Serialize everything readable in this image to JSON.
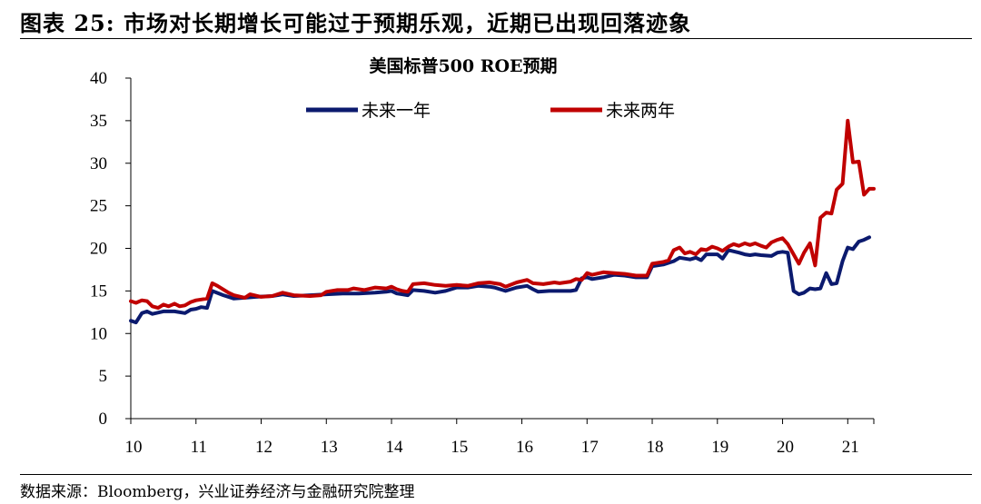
{
  "figure": {
    "title": "图表 25:  市场对长期增长可能过于预期乐观，近期已出现回落迹象",
    "source": "数据来源：Bloomberg，兴业证券经济与金融研究院整理"
  },
  "chart_data": {
    "type": "line",
    "title": "美国标普500 ROE预期",
    "xlabel": "",
    "ylabel": "",
    "xlim": [
      10,
      21.4
    ],
    "ylim": [
      0,
      40
    ],
    "yticks": [
      0,
      5,
      10,
      15,
      20,
      25,
      30,
      35,
      40
    ],
    "xticks": [
      10,
      11,
      12,
      13,
      14,
      15,
      16,
      17,
      18,
      19,
      20,
      21
    ],
    "xtick_labels": [
      "10",
      "11",
      "12",
      "13",
      "14",
      "15",
      "16",
      "17",
      "18",
      "19",
      "20",
      "21"
    ],
    "grid": false,
    "legend_position": "top",
    "series": [
      {
        "name": "未来一年",
        "color": "#0b1a6e",
        "points": [
          [
            10.0,
            11.5
          ],
          [
            10.08,
            11.3
          ],
          [
            10.17,
            12.4
          ],
          [
            10.25,
            12.6
          ],
          [
            10.33,
            12.3
          ],
          [
            10.5,
            12.6
          ],
          [
            10.67,
            12.6
          ],
          [
            10.83,
            12.4
          ],
          [
            10.92,
            12.8
          ],
          [
            11.0,
            12.9
          ],
          [
            11.08,
            13.1
          ],
          [
            11.17,
            13.0
          ],
          [
            11.25,
            15.0
          ],
          [
            11.42,
            14.5
          ],
          [
            11.58,
            14.1
          ],
          [
            11.75,
            14.2
          ],
          [
            11.92,
            14.3
          ],
          [
            12.17,
            14.4
          ],
          [
            12.33,
            14.6
          ],
          [
            12.5,
            14.4
          ],
          [
            12.75,
            14.5
          ],
          [
            13.0,
            14.6
          ],
          [
            13.25,
            14.7
          ],
          [
            13.5,
            14.7
          ],
          [
            13.75,
            14.8
          ],
          [
            13.92,
            14.9
          ],
          [
            14.0,
            15.0
          ],
          [
            14.08,
            14.7
          ],
          [
            14.17,
            14.6
          ],
          [
            14.25,
            14.5
          ],
          [
            14.33,
            15.1
          ],
          [
            14.5,
            15.0
          ],
          [
            14.67,
            14.8
          ],
          [
            14.83,
            15.0
          ],
          [
            15.0,
            15.4
          ],
          [
            15.17,
            15.4
          ],
          [
            15.33,
            15.6
          ],
          [
            15.5,
            15.5
          ],
          [
            15.58,
            15.4
          ],
          [
            15.75,
            15.0
          ],
          [
            15.92,
            15.4
          ],
          [
            16.08,
            15.6
          ],
          [
            16.17,
            15.2
          ],
          [
            16.25,
            14.9
          ],
          [
            16.42,
            15.0
          ],
          [
            16.58,
            15.0
          ],
          [
            16.75,
            15.0
          ],
          [
            16.83,
            15.1
          ],
          [
            16.92,
            16.5
          ],
          [
            17.0,
            16.6
          ],
          [
            17.08,
            16.4
          ],
          [
            17.25,
            16.6
          ],
          [
            17.42,
            16.9
          ],
          [
            17.58,
            16.8
          ],
          [
            17.75,
            16.6
          ],
          [
            17.92,
            16.6
          ],
          [
            18.0,
            17.9
          ],
          [
            18.17,
            18.1
          ],
          [
            18.33,
            18.5
          ],
          [
            18.42,
            18.9
          ],
          [
            18.58,
            18.7
          ],
          [
            18.67,
            18.9
          ],
          [
            18.75,
            18.6
          ],
          [
            18.83,
            19.3
          ],
          [
            19.0,
            19.3
          ],
          [
            19.08,
            18.8
          ],
          [
            19.17,
            19.8
          ],
          [
            19.33,
            19.5
          ],
          [
            19.42,
            19.3
          ],
          [
            19.5,
            19.2
          ],
          [
            19.58,
            19.3
          ],
          [
            19.67,
            19.2
          ],
          [
            19.83,
            19.1
          ],
          [
            19.92,
            19.5
          ],
          [
            20.0,
            19.6
          ],
          [
            20.08,
            19.5
          ],
          [
            20.17,
            15.0
          ],
          [
            20.25,
            14.6
          ],
          [
            20.33,
            14.8
          ],
          [
            20.42,
            15.3
          ],
          [
            20.5,
            15.2
          ],
          [
            20.58,
            15.3
          ],
          [
            20.67,
            17.1
          ],
          [
            20.75,
            15.8
          ],
          [
            20.83,
            15.9
          ],
          [
            20.92,
            18.5
          ],
          [
            21.0,
            20.1
          ],
          [
            21.08,
            19.9
          ],
          [
            21.17,
            20.8
          ],
          [
            21.25,
            21.0
          ],
          [
            21.33,
            21.3
          ]
        ]
      },
      {
        "name": "未来两年",
        "color": "#c00000",
        "points": [
          [
            10.0,
            13.8
          ],
          [
            10.08,
            13.6
          ],
          [
            10.17,
            13.9
          ],
          [
            10.25,
            13.8
          ],
          [
            10.33,
            13.2
          ],
          [
            10.42,
            13.0
          ],
          [
            10.5,
            13.4
          ],
          [
            10.58,
            13.2
          ],
          [
            10.67,
            13.5
          ],
          [
            10.75,
            13.2
          ],
          [
            10.83,
            13.3
          ],
          [
            10.92,
            13.7
          ],
          [
            11.0,
            13.9
          ],
          [
            11.17,
            14.1
          ],
          [
            11.25,
            15.9
          ],
          [
            11.33,
            15.6
          ],
          [
            11.5,
            14.8
          ],
          [
            11.58,
            14.5
          ],
          [
            11.75,
            14.2
          ],
          [
            11.83,
            14.6
          ],
          [
            12.0,
            14.3
          ],
          [
            12.17,
            14.4
          ],
          [
            12.33,
            14.8
          ],
          [
            12.5,
            14.5
          ],
          [
            12.75,
            14.4
          ],
          [
            12.92,
            14.5
          ],
          [
            13.0,
            14.9
          ],
          [
            13.17,
            15.1
          ],
          [
            13.33,
            15.1
          ],
          [
            13.42,
            15.3
          ],
          [
            13.58,
            15.1
          ],
          [
            13.75,
            15.4
          ],
          [
            13.92,
            15.3
          ],
          [
            14.0,
            15.5
          ],
          [
            14.08,
            15.2
          ],
          [
            14.17,
            15.0
          ],
          [
            14.25,
            14.9
          ],
          [
            14.33,
            15.8
          ],
          [
            14.5,
            15.9
          ],
          [
            14.67,
            15.7
          ],
          [
            14.83,
            15.6
          ],
          [
            15.0,
            15.7
          ],
          [
            15.17,
            15.6
          ],
          [
            15.33,
            15.9
          ],
          [
            15.5,
            16.0
          ],
          [
            15.67,
            15.8
          ],
          [
            15.75,
            15.5
          ],
          [
            15.92,
            16.0
          ],
          [
            16.08,
            16.3
          ],
          [
            16.17,
            15.9
          ],
          [
            16.33,
            15.8
          ],
          [
            16.5,
            16.0
          ],
          [
            16.58,
            15.9
          ],
          [
            16.75,
            16.1
          ],
          [
            16.83,
            16.4
          ],
          [
            16.92,
            16.3
          ],
          [
            17.0,
            17.1
          ],
          [
            17.08,
            16.9
          ],
          [
            17.25,
            17.2
          ],
          [
            17.42,
            17.1
          ],
          [
            17.58,
            17.0
          ],
          [
            17.75,
            16.8
          ],
          [
            17.92,
            16.8
          ],
          [
            18.0,
            18.2
          ],
          [
            18.17,
            18.4
          ],
          [
            18.25,
            18.6
          ],
          [
            18.33,
            19.8
          ],
          [
            18.42,
            20.1
          ],
          [
            18.5,
            19.4
          ],
          [
            18.58,
            19.6
          ],
          [
            18.67,
            19.3
          ],
          [
            18.75,
            19.9
          ],
          [
            18.83,
            19.8
          ],
          [
            18.92,
            20.2
          ],
          [
            19.0,
            20.0
          ],
          [
            19.08,
            19.7
          ],
          [
            19.17,
            20.2
          ],
          [
            19.25,
            20.5
          ],
          [
            19.33,
            20.3
          ],
          [
            19.42,
            20.6
          ],
          [
            19.5,
            20.4
          ],
          [
            19.58,
            20.6
          ],
          [
            19.67,
            20.3
          ],
          [
            19.75,
            20.1
          ],
          [
            19.83,
            20.7
          ],
          [
            19.92,
            21.0
          ],
          [
            20.0,
            21.2
          ],
          [
            20.08,
            20.5
          ],
          [
            20.17,
            19.3
          ],
          [
            20.25,
            18.2
          ],
          [
            20.33,
            19.5
          ],
          [
            20.42,
            20.6
          ],
          [
            20.5,
            18.0
          ],
          [
            20.58,
            23.6
          ],
          [
            20.67,
            24.2
          ],
          [
            20.75,
            24.1
          ],
          [
            20.83,
            26.9
          ],
          [
            20.92,
            27.6
          ],
          [
            21.0,
            35.0
          ],
          [
            21.08,
            30.1
          ],
          [
            21.17,
            30.2
          ],
          [
            21.25,
            26.3
          ],
          [
            21.33,
            27.0
          ],
          [
            21.4,
            27.0
          ]
        ]
      }
    ]
  }
}
